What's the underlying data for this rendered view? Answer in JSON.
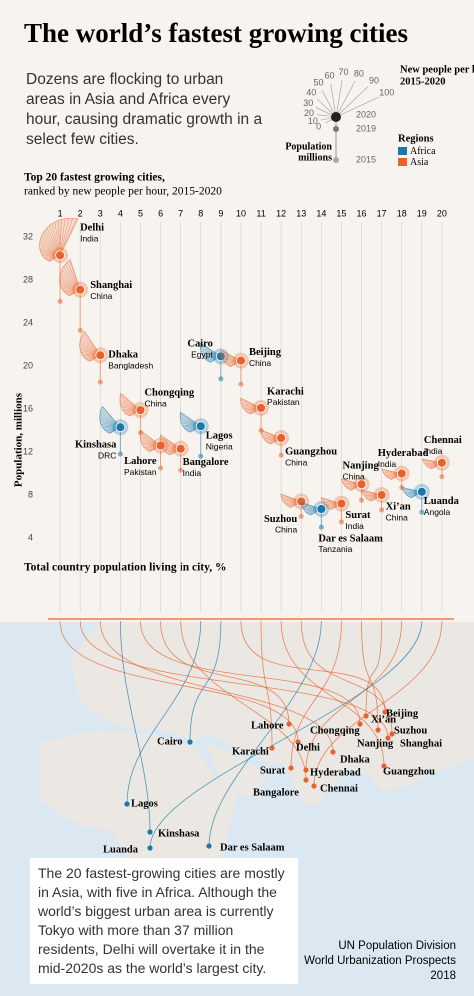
{
  "title": "The world’s fastest growing cities",
  "intro": "Dozens are flocking to urban areas in Asia and Africa every hour, causing dramatic growth in a select few cities.",
  "legend": {
    "title": "New people per hour",
    "subtitle": "2015-2020",
    "ticks": [
      0,
      10,
      20,
      30,
      40,
      50,
      60,
      70,
      80,
      90,
      100
    ],
    "mid_year": "2019",
    "size_label": [
      "Population",
      "millions"
    ],
    "regions_title": "Regions",
    "regions": [
      {
        "name": "Africa",
        "color": "#1b78ab"
      },
      {
        "name": "Asia",
        "color": "#e8622c"
      }
    ]
  },
  "chart_data": [
    {
      "type": "fan",
      "title": "Top 20 fastest growing cities,",
      "subtitle": "ranked by new people per hour, 2015-2020",
      "y_label": "Population, millions",
      "x": [
        1,
        2,
        3,
        4,
        5,
        6,
        7,
        8,
        9,
        10,
        11,
        12,
        13,
        14,
        15,
        16,
        17,
        18,
        19,
        20
      ],
      "xlim": [
        0,
        21
      ],
      "xticks": [
        1,
        2,
        3,
        4,
        5,
        6,
        7,
        8,
        9,
        10,
        11,
        12,
        13,
        14,
        15,
        16,
        17,
        18,
        19,
        20
      ],
      "ylim": [
        4,
        32
      ],
      "yticks": [
        4,
        8,
        12,
        16,
        20,
        24,
        28,
        32
      ],
      "cities": [
        "Delhi",
        "Shanghai",
        "Dhaka",
        "Kinshasa",
        "Chongqing",
        "Lahore",
        "Bangalore",
        "Lagos",
        "Cairo",
        "Beijing",
        "Karachi",
        "Guangzhou",
        "Suzhou",
        "Dar es Salaam",
        "Surat",
        "Nanjing",
        "Xi’an",
        "Hyderabad",
        "Luanda",
        "Chennai"
      ],
      "countries": [
        "India",
        "China",
        "Bangladesh",
        "DRC",
        "China",
        "Pakistan",
        "India",
        "Nigeria",
        "Egypt",
        "China",
        "Pakistan",
        "China",
        "China",
        "Tanzania",
        "India",
        "China",
        "China",
        "India",
        "Angola",
        "India"
      ],
      "regions": [
        "Asia",
        "Asia",
        "Asia",
        "Africa",
        "Asia",
        "Asia",
        "Asia",
        "Africa",
        "Africa",
        "Asia",
        "Asia",
        "Asia",
        "Asia",
        "Africa",
        "Asia",
        "Asia",
        "Asia",
        "Asia",
        "Africa",
        "Asia"
      ],
      "series": [
        {
          "name": "2020",
          "values": [
            30.3,
            27.1,
            21.0,
            14.3,
            15.9,
            12.6,
            12.3,
            14.4,
            20.9,
            20.5,
            16.1,
            13.3,
            7.4,
            6.7,
            7.2,
            9.0,
            8.0,
            10.0,
            8.3,
            11.0
          ]
        },
        {
          "name": "2015",
          "values": [
            26.0,
            23.3,
            18.5,
            11.8,
            13.8,
            10.5,
            10.3,
            11.6,
            18.8,
            18.3,
            14.0,
            11.7,
            6.0,
            5.0,
            5.5,
            7.5,
            6.6,
            8.7,
            6.4,
            9.7
          ]
        }
      ],
      "new_per_hour": [
        79,
        55,
        47,
        43,
        38,
        36,
        35,
        35,
        34,
        31,
        30,
        28,
        27,
        26,
        25,
        24,
        24,
        23,
        23,
        22
      ]
    },
    {
      "type": "bar",
      "title": "Total country population living in city, %",
      "values": [
        2.0,
        1.7,
        10.9,
        15.2,
        1.0,
        5.5,
        0.8,
        6.8,
        20.1,
        1.3,
        7.5,
        0.4,
        0.8,
        9.5,
        0.4,
        0.5,
        0.5,
        0.7,
        25.2,
        0.7
      ],
      "value_labels": [
        "2.0",
        "1.7",
        "10.9",
        "15.2",
        "1.0",
        "5.5",
        "0.8",
        "6.8",
        "20.1",
        "1.3",
        "7.5",
        "0.4",
        "0.8",
        "9.5",
        "0.4",
        "0.5",
        "0.5",
        "0.7",
        "25.2",
        "0.7"
      ]
    }
  ],
  "note": "The 20 fastest-growing cities are mostly in Asia, with five in Africa. Although the world’s biggest urban area is currently Tokyo with more than 37 million residents, Delhi will overtake it in the mid-2020s as the world’s largest city.",
  "source": [
    "UN Population Division",
    "World Urbanization Prospects",
    "2018"
  ]
}
